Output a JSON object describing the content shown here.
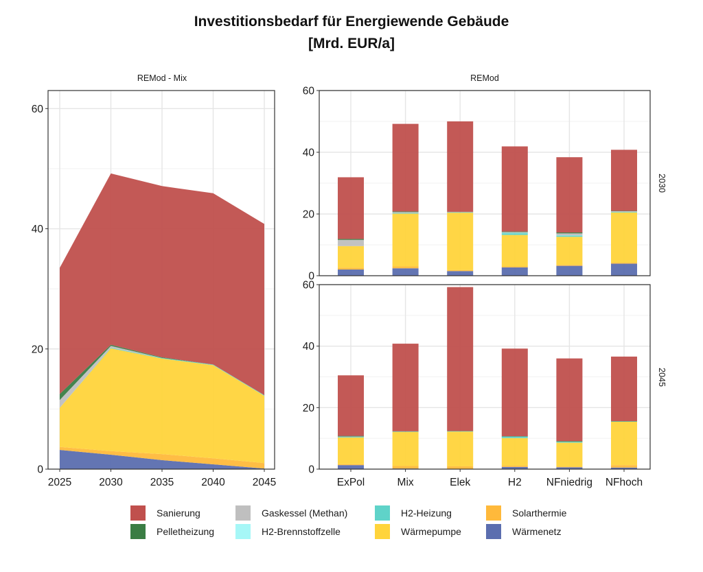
{
  "title_line1": "Investitionsbedarf für Energiewende Gebäude",
  "title_line2": "[Mrd. EUR/a]",
  "components": [
    {
      "key": "sanierung",
      "name": "Sanierung",
      "color": "#c0504d"
    },
    {
      "key": "pellet",
      "name": "Pelletheizung",
      "color": "#3a7d44"
    },
    {
      "key": "gas",
      "name": "Gaskessel (Methan)",
      "color": "#bfbfbf"
    },
    {
      "key": "h2bz",
      "name": "H2-Brennstoffzelle",
      "color": "#a6f7f7"
    },
    {
      "key": "h2h",
      "name": "H2-Heizung",
      "color": "#5fd3c9"
    },
    {
      "key": "wp",
      "name": "Wärmepumpe",
      "color": "#ffd43b"
    },
    {
      "key": "solar",
      "name": "Solarthermie",
      "color": "#ffb93b"
    },
    {
      "key": "wn",
      "name": "Wärmenetz",
      "color": "#5b6eaf"
    }
  ],
  "legend_order": [
    "sanierung",
    "gas",
    "h2h",
    "solar",
    "pellet",
    "h2bz",
    "wp",
    "wn"
  ],
  "chart_data": [
    {
      "type": "area",
      "panel": "REMod - Mix",
      "x": [
        2025,
        2030,
        2035,
        2040,
        2045
      ],
      "ylim": [
        0,
        63
      ],
      "yticks": [
        0,
        20,
        40,
        60
      ],
      "stack_order": [
        "wn",
        "solar",
        "wp",
        "h2h",
        "h2bz",
        "gas",
        "pellet",
        "sanierung"
      ],
      "series": [
        {
          "key": "wn",
          "values": [
            3.2,
            2.4,
            1.5,
            0.8,
            0.1
          ]
        },
        {
          "key": "solar",
          "values": [
            0.5,
            0.6,
            1.0,
            1.0,
            0.9
          ]
        },
        {
          "key": "wp",
          "values": [
            6.5,
            17.1,
            15.9,
            15.5,
            11.2
          ]
        },
        {
          "key": "h2h",
          "values": [
            0.0,
            0.1,
            0.1,
            0.1,
            0.1
          ]
        },
        {
          "key": "h2bz",
          "values": [
            0.0,
            0.0,
            0.0,
            0.0,
            0.0
          ]
        },
        {
          "key": "gas",
          "values": [
            1.3,
            0.3,
            0.0,
            0.0,
            0.0
          ]
        },
        {
          "key": "pellet",
          "values": [
            1.0,
            0.2,
            0.1,
            0.0,
            0.0
          ]
        },
        {
          "key": "sanierung",
          "values": [
            21.0,
            28.5,
            28.5,
            28.5,
            28.5
          ]
        }
      ]
    },
    {
      "type": "bar",
      "panel": "REMod",
      "facet": "2030",
      "categories": [
        "ExPol",
        "Mix",
        "Elek",
        "H2",
        "NFniedrig",
        "NFhoch"
      ],
      "ylim": [
        0,
        60
      ],
      "yticks": [
        0,
        20,
        40,
        60
      ],
      "stack_order": [
        "wn",
        "solar",
        "wp",
        "h2h",
        "h2bz",
        "gas",
        "pellet",
        "sanierung"
      ],
      "series": [
        {
          "key": "wn",
          "values": [
            2.0,
            2.4,
            1.5,
            2.7,
            3.2,
            3.9
          ]
        },
        {
          "key": "solar",
          "values": [
            0.6,
            0.6,
            0.3,
            0.3,
            0.3,
            0.3
          ]
        },
        {
          "key": "wp",
          "values": [
            7.0,
            17.1,
            18.6,
            10.2,
            9.1,
            16.3
          ]
        },
        {
          "key": "h2h",
          "values": [
            0.0,
            0.2,
            0.1,
            0.6,
            0.4,
            0.2
          ]
        },
        {
          "key": "h2bz",
          "values": [
            0.0,
            0.0,
            0.0,
            0.1,
            0.1,
            0.0
          ]
        },
        {
          "key": "gas",
          "values": [
            2.0,
            0.3,
            0.1,
            0.2,
            0.6,
            0.2
          ]
        },
        {
          "key": "pellet",
          "values": [
            0.3,
            0.2,
            0.1,
            0.2,
            0.3,
            0.1
          ]
        },
        {
          "key": "sanierung",
          "values": [
            20.0,
            28.4,
            29.3,
            27.6,
            24.4,
            19.8
          ]
        }
      ]
    },
    {
      "type": "bar",
      "panel": "REMod",
      "facet": "2045",
      "categories": [
        "ExPol",
        "Mix",
        "Elek",
        "H2",
        "NFniedrig",
        "NFhoch"
      ],
      "ylim": [
        0,
        60
      ],
      "yticks": [
        0,
        20,
        40,
        60
      ],
      "stack_order": [
        "wn",
        "solar",
        "wp",
        "h2h",
        "h2bz",
        "gas",
        "pellet",
        "sanierung"
      ],
      "series": [
        {
          "key": "wn",
          "values": [
            1.3,
            0.2,
            0.1,
            0.7,
            0.6,
            0.5
          ]
        },
        {
          "key": "solar",
          "values": [
            0.3,
            0.8,
            0.8,
            0.4,
            0.2,
            0.8
          ]
        },
        {
          "key": "wp",
          "values": [
            8.7,
            11.1,
            11.3,
            9.0,
            7.8,
            14.1
          ]
        },
        {
          "key": "h2h",
          "values": [
            0.2,
            0.1,
            0.1,
            0.5,
            0.3,
            0.1
          ]
        },
        {
          "key": "h2bz",
          "values": [
            0.0,
            0.0,
            0.0,
            0.0,
            0.0,
            0.0
          ]
        },
        {
          "key": "gas",
          "values": [
            0.1,
            0.0,
            0.0,
            0.0,
            0.0,
            0.0
          ]
        },
        {
          "key": "pellet",
          "values": [
            0.2,
            0.1,
            0.1,
            0.1,
            0.2,
            0.1
          ]
        },
        {
          "key": "sanierung",
          "values": [
            19.7,
            28.5,
            46.8,
            28.5,
            26.9,
            21.0
          ]
        }
      ]
    }
  ]
}
